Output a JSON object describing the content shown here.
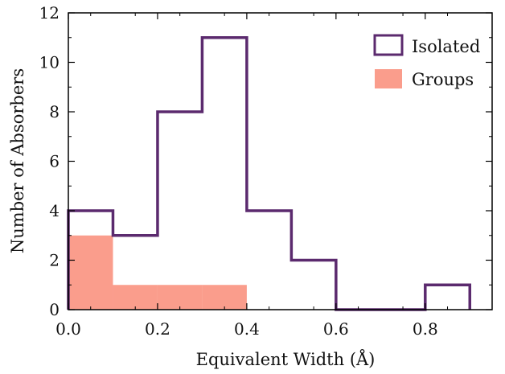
{
  "chart_data": {
    "type": "histogram",
    "xlabel": "Equivalent Width (Å)",
    "ylabel": "Number of Absorbers",
    "xlim": [
      0.0,
      0.95
    ],
    "ylim": [
      0,
      12
    ],
    "xticks": [
      0.0,
      0.2,
      0.4,
      0.6,
      0.8
    ],
    "xtick_labels": [
      "0.0",
      "0.2",
      "0.4",
      "0.6",
      "0.8"
    ],
    "yticks": [
      0,
      2,
      4,
      6,
      8,
      10,
      12
    ],
    "ytick_labels": [
      "0",
      "2",
      "4",
      "6",
      "8",
      "10",
      "12"
    ],
    "bin_edges": [
      0.0,
      0.1,
      0.2,
      0.3,
      0.4,
      0.5,
      0.6,
      0.7,
      0.8,
      0.9
    ],
    "grid": false,
    "legend_position": "top-right",
    "series": [
      {
        "name": "Isolated",
        "style": "step-outline",
        "color": "#5b2a6e",
        "counts": [
          4,
          3,
          8,
          11,
          4,
          2,
          0,
          0,
          1
        ]
      },
      {
        "name": "Groups",
        "style": "filled",
        "color": "#fa9d8c",
        "counts": [
          3,
          1,
          1,
          1,
          0,
          0,
          0,
          0,
          0
        ]
      }
    ]
  }
}
